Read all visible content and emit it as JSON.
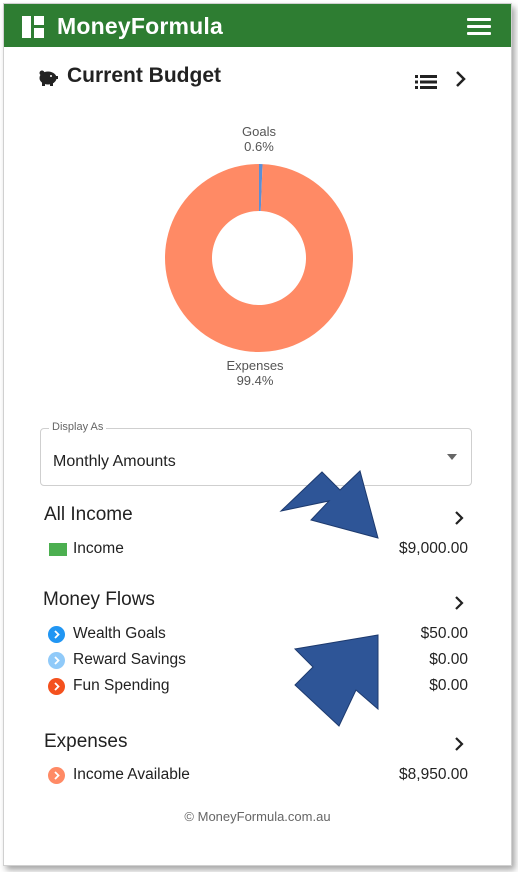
{
  "app": {
    "title": "MoneyFormula"
  },
  "budget": {
    "title": "Current Budget"
  },
  "chart_data": {
    "type": "pie",
    "categories": [
      "Goals",
      "Expenses"
    ],
    "values": [
      0.6,
      99.4
    ],
    "labels": [
      {
        "name": "Goals",
        "percent": "0.6%"
      },
      {
        "name": "Expenses",
        "percent": "99.4%"
      }
    ],
    "colors": {
      "Goals": "#5b8fd6",
      "Expenses": "#ff8a65"
    },
    "donut": true
  },
  "display_as": {
    "label": "Display As",
    "value": "Monthly Amounts"
  },
  "sections": {
    "income": {
      "title": "All Income",
      "rows": [
        {
          "label": "Income",
          "amount": "$9,000.00",
          "color": "#4caf50",
          "marker": "square"
        }
      ]
    },
    "money_flows": {
      "title": "Money Flows",
      "rows": [
        {
          "label": "Wealth Goals",
          "amount": "$50.00",
          "color": "#2196f3",
          "marker": "circle-chevron"
        },
        {
          "label": "Reward Savings",
          "amount": "$0.00",
          "color": "#90caf9",
          "marker": "circle-chevron"
        },
        {
          "label": "Fun Spending",
          "amount": "$0.00",
          "color": "#f4511e",
          "marker": "circle-chevron"
        }
      ]
    },
    "expenses": {
      "title": "Expenses",
      "rows": [
        {
          "label": "Income Available",
          "amount": "$8,950.00",
          "color": "#ff8a65",
          "marker": "circle-chevron"
        }
      ]
    }
  },
  "footer": {
    "text": "© MoneyFormula.com.au"
  },
  "colors": {
    "appbar": "#2e7d32",
    "annotation_arrow": "#2e5597"
  }
}
